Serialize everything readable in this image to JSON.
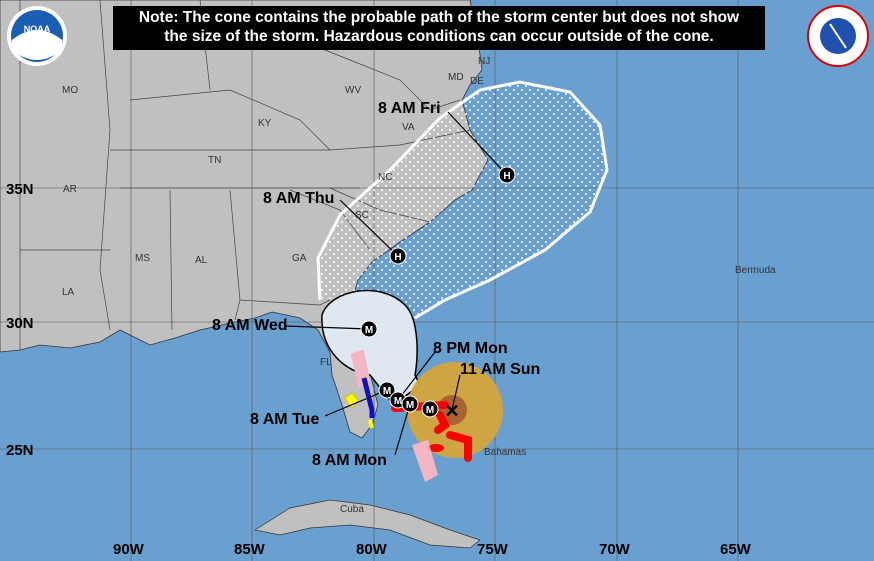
{
  "note": {
    "line1": "Note: The cone contains the probable path of the storm center but does not show",
    "line2": "the size of the storm. Hazardous conditions can occur outside of the cone."
  },
  "logos": {
    "left": "NOAA",
    "right": "NATIONAL WEATHER SERVICE"
  },
  "forecast_points": [
    {
      "label": "11 AM Sun",
      "marker": "X"
    },
    {
      "label": "8 AM Mon",
      "marker": "M"
    },
    {
      "label": "8 PM Mon",
      "marker": "M"
    },
    {
      "label": "8 AM Tue",
      "marker": "M"
    },
    {
      "label": "8 AM Wed",
      "marker": "M"
    },
    {
      "label": "8 AM Thu",
      "marker": "H"
    },
    {
      "label": "8 AM Fri",
      "marker": "H"
    }
  ],
  "places": [
    "MO",
    "KY",
    "WV",
    "VA",
    "TN",
    "NC",
    "AR",
    "SC",
    "MS",
    "AL",
    "GA",
    "LA",
    "FL",
    "NJ",
    "MD",
    "DE",
    "Cuba",
    "Bahamas",
    "Bermuda"
  ],
  "lon_labels": [
    "90W",
    "85W",
    "80W",
    "75W",
    "70W",
    "65W"
  ],
  "lat_labels": [
    "35N",
    "30N",
    "25N"
  ],
  "colors": {
    "ocean": "#6aa0cf",
    "land": "#c0c0c0",
    "hurricane_warning": "#ff0000",
    "hurricane_watch": "#f4b6c2",
    "tropical_storm_warning": "#1010c0",
    "tropical_storm_watch": "#ffff00",
    "wind_field": "#d4a53a"
  }
}
